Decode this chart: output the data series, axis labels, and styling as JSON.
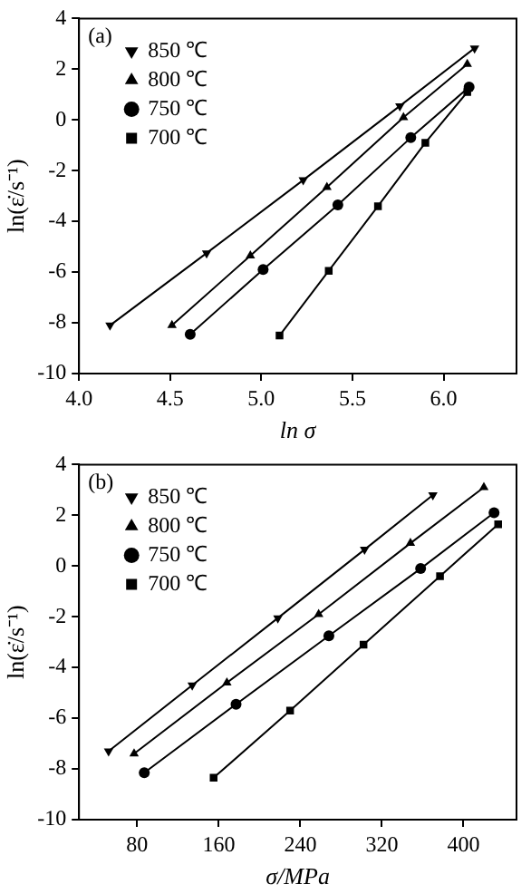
{
  "chart_data": [
    {
      "type": "line",
      "annotations": [
        "(a)"
      ],
      "xlabel": "ln σ",
      "ylabel": "ln(ε̇/s⁻¹)",
      "xlim": [
        4.0,
        6.4
      ],
      "xticks": [
        {
          "value": 4.0,
          "label": "4.0"
        },
        {
          "value": 4.5,
          "label": "4.5"
        },
        {
          "value": 5.0,
          "label": "5.0"
        },
        {
          "value": 5.5,
          "label": "5.5"
        },
        {
          "value": 6.0,
          "label": "6.0"
        }
      ],
      "ylim": [
        -10,
        4
      ],
      "yticks": [
        -10,
        -8,
        -6,
        -4,
        -2,
        0,
        2,
        4
      ],
      "grid": false,
      "legend": "top left",
      "series": [
        {
          "name": "850 ℃",
          "color": "#000000",
          "marker": "triangle-down",
          "x": [
            4.17,
            4.7,
            5.23,
            5.76,
            6.17
          ],
          "values": [
            -8.1,
            -5.25,
            -2.37,
            0.55,
            2.83
          ]
        },
        {
          "name": "800 ℃",
          "color": "#000000",
          "marker": "triangle",
          "x": [
            4.51,
            4.94,
            5.36,
            5.78,
            6.13
          ],
          "values": [
            -8.1,
            -5.35,
            -2.65,
            0.1,
            2.2
          ]
        },
        {
          "name": "750 ℃",
          "color": "#000000",
          "marker": "circle",
          "x": [
            4.61,
            5.01,
            5.42,
            5.82,
            6.14
          ],
          "values": [
            -8.45,
            -5.9,
            -3.35,
            -0.7,
            1.3
          ]
        },
        {
          "name": "700 ℃",
          "color": "#000000",
          "marker": "square",
          "x": [
            5.1,
            5.37,
            5.64,
            5.9,
            6.13
          ],
          "values": [
            -8.5,
            -5.95,
            -3.4,
            -0.9,
            1.1
          ]
        }
      ]
    },
    {
      "type": "line",
      "annotations": [
        "(b)"
      ],
      "xlabel": "σ/MPa",
      "ylabel": "ln(ε̇/s⁻¹)",
      "xlim": [
        23,
        452
      ],
      "xticks": [
        80,
        160,
        240,
        320,
        400
      ],
      "ylim": [
        -10,
        4
      ],
      "yticks": [
        -10,
        -8,
        -6,
        -4,
        -2,
        0,
        2,
        4
      ],
      "grid": false,
      "legend": "top left",
      "series": [
        {
          "name": "850 ℃",
          "color": "#000000",
          "marker": "triangle-down",
          "x": [
            52,
            134,
            218,
            303,
            370
          ],
          "values": [
            -7.3,
            -4.7,
            -2.05,
            0.65,
            2.8
          ]
        },
        {
          "name": "800 ℃",
          "color": "#000000",
          "marker": "triangle",
          "x": [
            77,
            168,
            258,
            348,
            420
          ],
          "values": [
            -7.4,
            -4.6,
            -1.9,
            0.9,
            3.1
          ]
        },
        {
          "name": "750 ℃",
          "color": "#000000",
          "marker": "circle",
          "x": [
            87,
            177,
            268,
            358,
            430
          ],
          "values": [
            -8.15,
            -5.45,
            -2.75,
            -0.1,
            2.1
          ]
        },
        {
          "name": "700 ℃",
          "color": "#000000",
          "marker": "square",
          "x": [
            155,
            230,
            302,
            377,
            434
          ],
          "values": [
            -8.35,
            -5.7,
            -3.1,
            -0.4,
            1.65
          ]
        }
      ]
    }
  ]
}
